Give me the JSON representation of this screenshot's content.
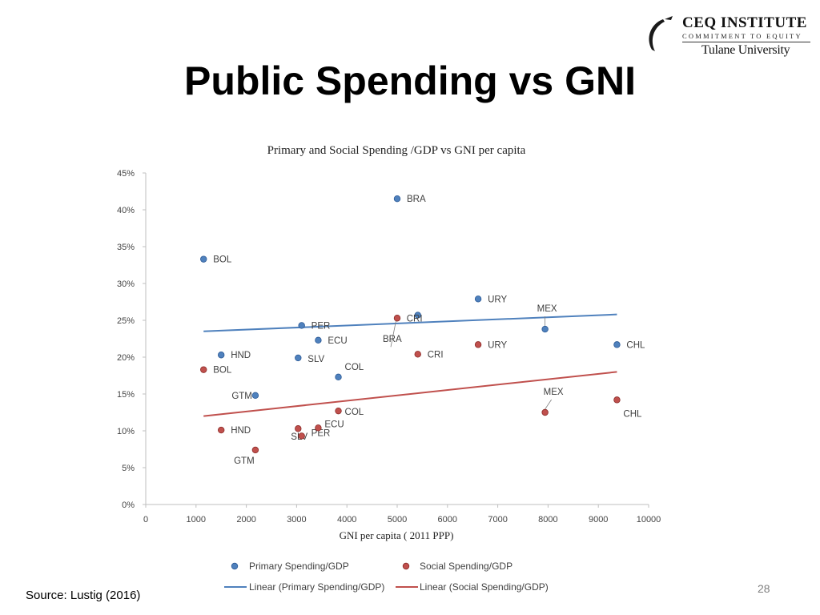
{
  "slide": {
    "title": "Public Spending vs GNI",
    "source": "Source: Lustig (2016)",
    "page_number": "28"
  },
  "logo": {
    "name": "CEQ INSTITUTE",
    "tagline": "COMMITMENT TO EQUITY",
    "university": "Tulane University"
  },
  "colors": {
    "primary": "#4f81bd",
    "primary_edge": "#2c5a96",
    "social": "#c0504d",
    "social_edge": "#8b2b28",
    "axis": "#bfbfbf",
    "label": "#404040"
  },
  "chart_data": {
    "type": "scatter",
    "title": "Primary and Social Spending /GDP vs GNI per capita",
    "xlabel": "GNI per capita ( 2011 PPP)",
    "ylabel": "",
    "xlim": [
      0,
      10000
    ],
    "ylim": [
      0,
      45
    ],
    "x_ticks": [
      0,
      1000,
      2000,
      3000,
      4000,
      5000,
      6000,
      7000,
      8000,
      9000,
      10000
    ],
    "y_ticks": [
      "0%",
      "5%",
      "10%",
      "15%",
      "20%",
      "25%",
      "30%",
      "35%",
      "40%",
      "45%"
    ],
    "grid": false,
    "legend_position": "bottom",
    "series": [
      {
        "name": "Primary Spending/GDP",
        "color": "#4f81bd",
        "points": [
          {
            "label": "BOL",
            "x": 1150,
            "y": 33.3
          },
          {
            "label": "HND",
            "x": 1500,
            "y": 20.3
          },
          {
            "label": "GTM",
            "x": 2180,
            "y": 14.8
          },
          {
            "label": "SLV",
            "x": 3030,
            "y": 19.9
          },
          {
            "label": "PER",
            "x": 3100,
            "y": 24.3
          },
          {
            "label": "ECU",
            "x": 3430,
            "y": 22.3
          },
          {
            "label": "COL",
            "x": 3830,
            "y": 17.3
          },
          {
            "label": "BRA",
            "x": 5000,
            "y": 41.5
          },
          {
            "label": "CRI",
            "x": 5410,
            "y": 25.7
          },
          {
            "label": "URY",
            "x": 6610,
            "y": 27.9
          },
          {
            "label": "MEX",
            "x": 7940,
            "y": 23.8
          },
          {
            "label": "CHL",
            "x": 9370,
            "y": 21.7
          }
        ],
        "trendline": {
          "name": "Linear (Primary Spending/GDP)",
          "x": [
            1150,
            9370
          ],
          "y": [
            23.5,
            25.8
          ]
        }
      },
      {
        "name": "Social Spending/GDP",
        "color": "#c0504d",
        "points": [
          {
            "label": "BOL",
            "x": 1150,
            "y": 18.3
          },
          {
            "label": "HND",
            "x": 1500,
            "y": 10.1
          },
          {
            "label": "GTM",
            "x": 2180,
            "y": 7.4
          },
          {
            "label": "SLV",
            "x": 3030,
            "y": 10.3
          },
          {
            "label": "PER",
            "x": 3100,
            "y": 9.3
          },
          {
            "label": "ECU",
            "x": 3430,
            "y": 10.4
          },
          {
            "label": "COL",
            "x": 3830,
            "y": 12.7
          },
          {
            "label": "BRA",
            "x": 5000,
            "y": 25.3
          },
          {
            "label": "CRI",
            "x": 5410,
            "y": 20.4
          },
          {
            "label": "URY",
            "x": 6610,
            "y": 21.7
          },
          {
            "label": "MEX",
            "x": 7940,
            "y": 12.5
          },
          {
            "label": "CHL",
            "x": 9370,
            "y": 14.2
          }
        ],
        "trendline": {
          "name": "Linear (Social Spending/GDP)",
          "x": [
            1150,
            9370
          ],
          "y": [
            12.0,
            18.0
          ]
        }
      }
    ]
  }
}
